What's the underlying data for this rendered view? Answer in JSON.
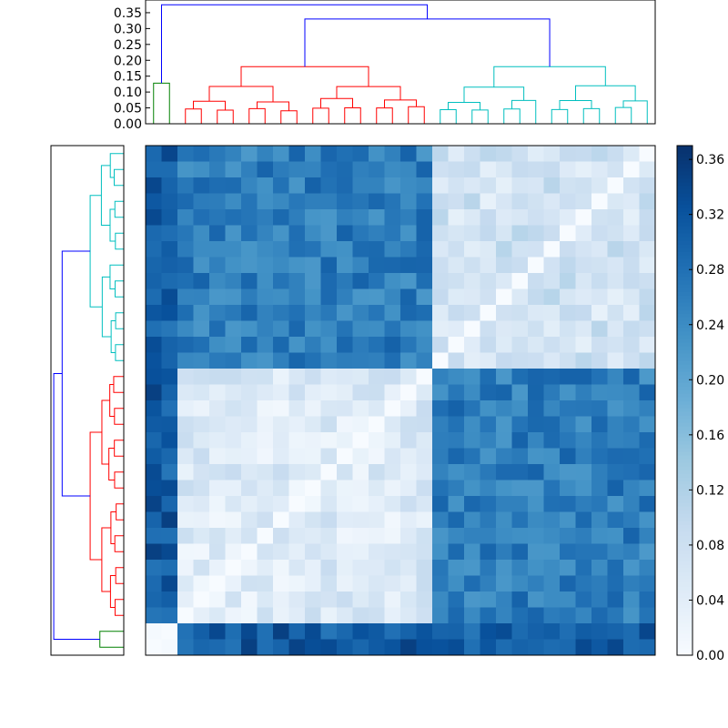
{
  "chart_data": {
    "type": "heatmap",
    "title": "",
    "colormap": "Blues",
    "n": 32,
    "matrix_order": "rows top-to-bottom, columns left-to-right; rows follow the left dendrogram, columns follow the top dendrogram",
    "values_note": "Estimated pairwise distances read from the colorbar; symmetric block structure, zero distance on the anti-diagonal (row and column orders are mirror images).",
    "colorbar": {
      "min": 0.0,
      "max": 0.37,
      "ticks": [
        0.0,
        0.04,
        0.08,
        0.12,
        0.16,
        0.2,
        0.24,
        0.28,
        0.32,
        0.36
      ],
      "tick_labels": [
        "0.00",
        "0.04",
        "0.08",
        "0.12",
        "0.16",
        "0.20",
        "0.24",
        "0.28",
        "0.32",
        "0.36"
      ]
    },
    "top_dendrogram": {
      "ylim": [
        0,
        0.39
      ],
      "ticks": [
        0.0,
        0.05,
        0.1,
        0.15,
        0.2,
        0.25,
        0.3,
        0.35
      ],
      "tick_labels": [
        "0.00",
        "0.05",
        "0.10",
        "0.15",
        "0.20",
        "0.25",
        "0.30",
        "0.35"
      ],
      "clusters": [
        {
          "name": "cluster-green",
          "color": "#008000",
          "size": 2,
          "height": 0.128
        },
        {
          "name": "cluster-red",
          "color": "#ff0000",
          "size": 16,
          "height": 0.18
        },
        {
          "name": "cluster-cyan",
          "color": "#00bfbf",
          "size": 14,
          "height": 0.18
        }
      ],
      "root_color": "#0000ff",
      "root_height": 0.375,
      "upper_link_height": 0.33
    },
    "left_dendrogram": {
      "clusters_top_to_bottom": [
        {
          "name": "cluster-cyan",
          "color": "#00bfbf",
          "size": 14
        },
        {
          "name": "cluster-red",
          "color": "#ff0000",
          "size": 16
        },
        {
          "name": "cluster-green",
          "color": "#008000",
          "size": 2
        }
      ],
      "root_color": "#0000ff"
    },
    "blocks": {
      "order_top_dendrogram": [
        "cluster-green",
        "cluster-red",
        "cluster-cyan"
      ],
      "within_cluster_distance": {
        "cluster-green": 0.02,
        "cluster-red": 0.05,
        "cluster-cyan": 0.07
      },
      "between_cluster_distance": {
        "cluster-green|cluster-red": 0.31,
        "cluster-green|cluster-cyan": 0.3,
        "cluster-red|cluster-cyan": 0.26
      }
    }
  }
}
